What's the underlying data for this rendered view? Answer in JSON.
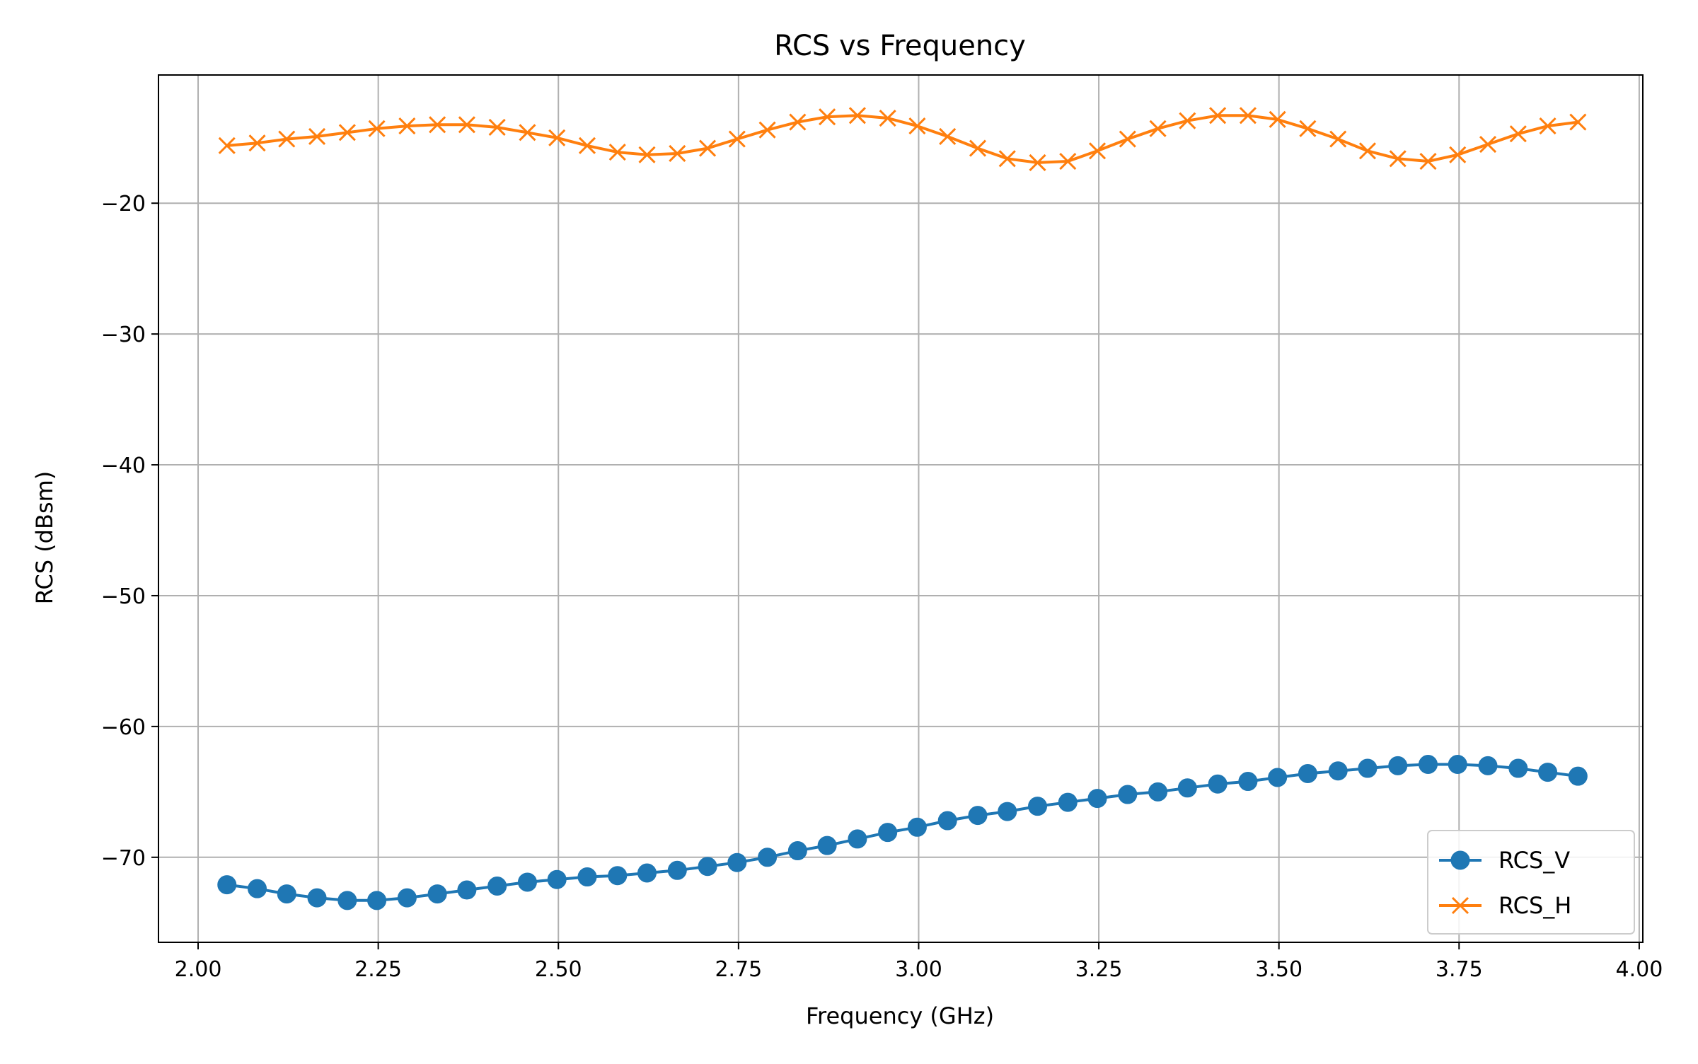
{
  "chart_data": {
    "type": "line",
    "title": "RCS vs Frequency",
    "xlabel": "Frequency (GHz)",
    "ylabel": "RCS (dBsm)",
    "xlim": [
      1.945,
      4.005
    ],
    "ylim": [
      -76.5,
      -10.2
    ],
    "xticks": [
      2.0,
      2.25,
      2.5,
      2.75,
      3.0,
      3.25,
      3.5,
      3.75,
      4.0
    ],
    "xtick_labels": [
      "2.00",
      "2.25",
      "2.50",
      "2.75",
      "3.00",
      "3.25",
      "3.50",
      "3.75",
      "4.00"
    ],
    "yticks": [
      -20,
      -30,
      -40,
      -50,
      -60,
      -70
    ],
    "ytick_labels": [
      "−20",
      "−30",
      "−40",
      "−50",
      "−60",
      "−70"
    ],
    "grid": true,
    "legend_position": "lower-right",
    "x": [
      2.04,
      2.082,
      2.123,
      2.165,
      2.207,
      2.248,
      2.29,
      2.332,
      2.373,
      2.415,
      2.457,
      2.498,
      2.54,
      2.582,
      2.623,
      2.665,
      2.707,
      2.748,
      2.79,
      2.832,
      2.873,
      2.915,
      2.957,
      2.998,
      3.04,
      3.082,
      3.123,
      3.165,
      3.207,
      3.248,
      3.29,
      3.332,
      3.373,
      3.415,
      3.457,
      3.498,
      3.54,
      3.582,
      3.623,
      3.665,
      3.707,
      3.748,
      3.79,
      3.832,
      3.873,
      3.915
    ],
    "series": [
      {
        "name": "RCS_V",
        "color": "#1f77b4",
        "marker": "circle",
        "values": [
          -72.1,
          -72.4,
          -72.8,
          -73.1,
          -73.3,
          -73.3,
          -73.1,
          -72.8,
          -72.5,
          -72.2,
          -71.9,
          -71.7,
          -71.5,
          -71.4,
          -71.2,
          -71.0,
          -70.7,
          -70.4,
          -70.0,
          -69.5,
          -69.1,
          -68.6,
          -68.1,
          -67.7,
          -67.2,
          -66.8,
          -66.5,
          -66.1,
          -65.8,
          -65.5,
          -65.2,
          -65.0,
          -64.7,
          -64.4,
          -64.2,
          -63.9,
          -63.6,
          -63.4,
          -63.2,
          -63.0,
          -62.9,
          -62.9,
          -63.0,
          -63.2,
          -63.5,
          -63.8
        ]
      },
      {
        "name": "RCS_H",
        "color": "#ff7f0e",
        "marker": "x",
        "values": [
          -15.6,
          -15.4,
          -15.1,
          -14.9,
          -14.6,
          -14.3,
          -14.1,
          -14.0,
          -14.0,
          -14.2,
          -14.6,
          -15.0,
          -15.6,
          -16.1,
          -16.3,
          -16.2,
          -15.8,
          -15.1,
          -14.4,
          -13.8,
          -13.4,
          -13.3,
          -13.5,
          -14.1,
          -14.9,
          -15.8,
          -16.6,
          -16.9,
          -16.8,
          -16.0,
          -15.1,
          -14.3,
          -13.7,
          -13.3,
          -13.3,
          -13.6,
          -14.3,
          -15.1,
          -16.0,
          -16.6,
          -16.8,
          -16.3,
          -15.5,
          -14.7,
          -14.1,
          -13.8
        ]
      }
    ]
  }
}
